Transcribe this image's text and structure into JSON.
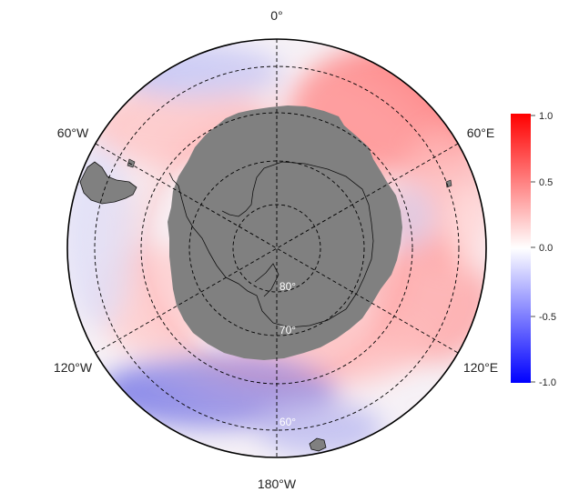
{
  "map": {
    "projection": "south-polar-stereographic",
    "longitude_labels": {
      "top": "0°",
      "upper_right": "60°E",
      "lower_right": "120°E",
      "bottom": "180°W",
      "lower_left": "120°W",
      "upper_left": "60°W"
    },
    "latitude_labels": [
      "80°",
      "70°",
      "60°"
    ],
    "land_color": "#808080",
    "colormap": {
      "low": "#0000ff",
      "mid": "#ffffff",
      "high": "#ff0000"
    },
    "colorbar": {
      "range": [
        -1.0,
        1.0
      ],
      "ticks": [
        "1.0",
        "0.5",
        "0.0",
        "-0.5",
        "-1.0"
      ]
    }
  }
}
